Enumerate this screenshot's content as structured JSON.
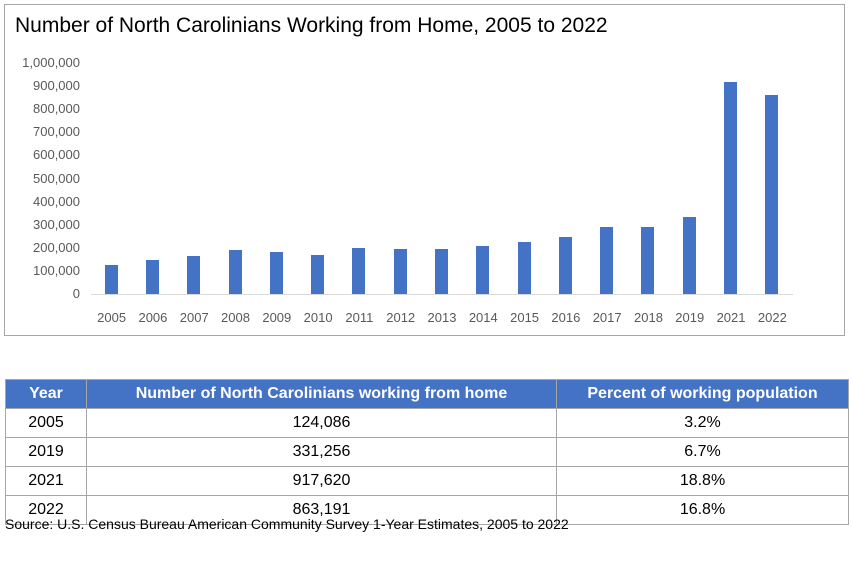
{
  "chart": {
    "title": "Number of North Carolinians Working from Home, 2005 to 2022",
    "y_ticks": [
      "1,000,000",
      "900,000",
      "800,000",
      "700,000",
      "600,000",
      "500,000",
      "400,000",
      "300,000",
      "200,000",
      "100,000",
      "0"
    ],
    "x_ticks": [
      "2005",
      "2006",
      "2007",
      "2008",
      "2009",
      "2010",
      "2011",
      "2012",
      "2013",
      "2014",
      "2015",
      "2016",
      "2017",
      "2018",
      "2019",
      "2021",
      "2022"
    ],
    "bar_color": "#4472c4"
  },
  "chart_data": {
    "type": "bar",
    "title": "Number of North Carolinians Working from Home, 2005 to 2022",
    "xlabel": "",
    "ylabel": "",
    "categories": [
      "2005",
      "2006",
      "2007",
      "2008",
      "2009",
      "2010",
      "2011",
      "2012",
      "2013",
      "2014",
      "2015",
      "2016",
      "2017",
      "2018",
      "2019",
      "2021",
      "2022"
    ],
    "values": [
      124086,
      146000,
      163000,
      189000,
      180000,
      167000,
      198000,
      193000,
      197000,
      209000,
      226000,
      248000,
      292000,
      292000,
      331256,
      917620,
      863191
    ],
    "ylim": [
      0,
      1000000
    ],
    "y_tick_step": 100000,
    "grid": false,
    "legend": "none",
    "color": "#4472c4"
  },
  "table": {
    "headers": [
      "Year",
      "Number of North Carolinians working from home",
      "Percent of working population"
    ],
    "rows": [
      [
        "2005",
        "124,086",
        "3.2%"
      ],
      [
        "2019",
        "331,256",
        "6.7%"
      ],
      [
        "2021",
        "917,620",
        "18.8%"
      ],
      [
        "2022",
        "863,191",
        "16.8%"
      ]
    ],
    "header_color": "#4472c4"
  },
  "source": "Source: U.S. Census Bureau American Community Survey 1-Year Estimates, 2005 to 2022"
}
